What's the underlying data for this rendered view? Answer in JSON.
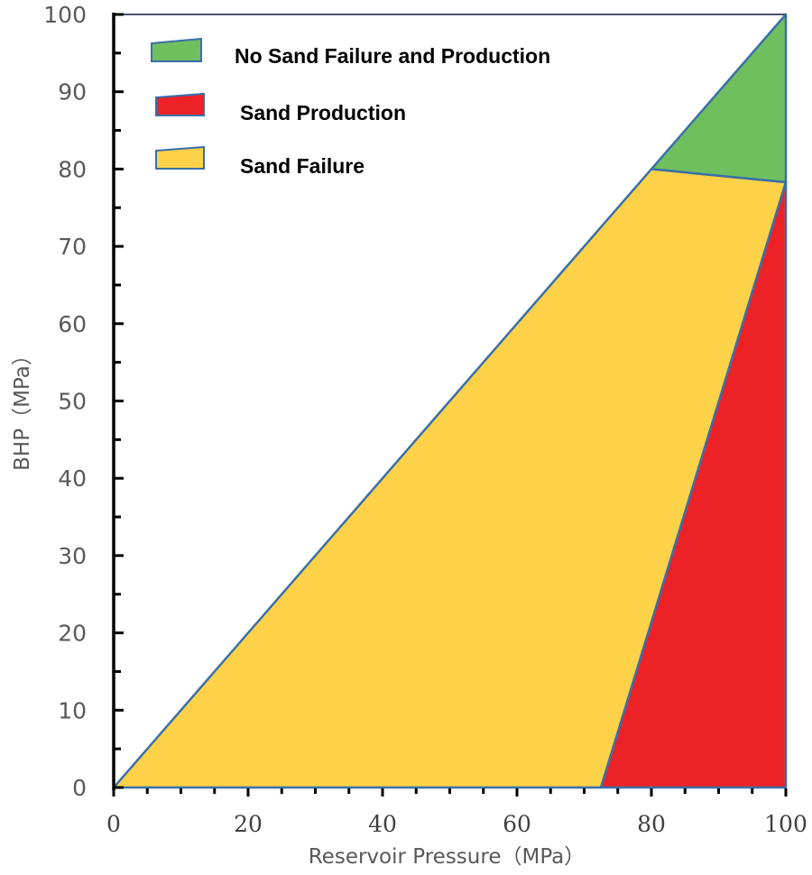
{
  "chart_data": {
    "type": "area",
    "title": "",
    "xlabel": "Reservoir Pressure（MPa）",
    "ylabel": "BHP（MPa）",
    "xlim": [
      0,
      100
    ],
    "ylim": [
      0,
      100
    ],
    "x_ticks": [
      0,
      20,
      40,
      60,
      80,
      100
    ],
    "y_ticks": [
      0,
      10,
      20,
      30,
      40,
      50,
      60,
      70,
      80,
      90,
      100
    ],
    "x_minor_step": 5,
    "y_minor_step": 5,
    "grid": false,
    "legend_position": "upper-left (inside plot)",
    "regions": [
      {
        "name": "No Sand Failure and Production",
        "color": "#70BF5F",
        "vertices": [
          [
            80,
            80
          ],
          [
            100,
            100
          ],
          [
            100,
            78.3
          ]
        ]
      },
      {
        "name": "Sand Production",
        "color": "#EC2227",
        "vertices": [
          [
            72.5,
            0
          ],
          [
            100,
            78.3
          ],
          [
            100,
            0
          ]
        ]
      },
      {
        "name": "Sand Failure",
        "color": "#FDD249",
        "vertices": [
          [
            0,
            0
          ],
          [
            80,
            80
          ],
          [
            100,
            78.3
          ],
          [
            72.5,
            0
          ]
        ]
      }
    ],
    "outline_color": "#3A6FA8"
  },
  "axes": {
    "x_title": "Reservoir Pressure（MPa）",
    "y_title": "BHP（MPa）",
    "x_tick_labels": [
      "0",
      "20",
      "40",
      "60",
      "80",
      "100"
    ],
    "y_tick_labels": [
      "0",
      "10",
      "20",
      "30",
      "40",
      "50",
      "60",
      "70",
      "80",
      "90",
      "100"
    ]
  },
  "legend": {
    "items": [
      {
        "label": "No Sand Failure and Production",
        "color": "#70BF5F"
      },
      {
        "label": "Sand Production",
        "color": "#EC2227"
      },
      {
        "label": "Sand Failure",
        "color": "#FDD249"
      }
    ]
  }
}
